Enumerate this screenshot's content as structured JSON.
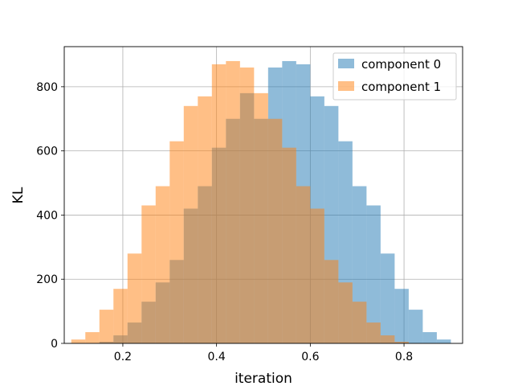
{
  "chart_data": {
    "type": "bar",
    "title": "",
    "xlabel": "iteration",
    "ylabel": "KL",
    "xlim": [
      0.075,
      0.925
    ],
    "ylim": [
      0,
      925
    ],
    "xticks": [
      0.2,
      0.4,
      0.6,
      0.8
    ],
    "xtick_labels": [
      "0.2",
      "0.4",
      "0.6",
      "0.8"
    ],
    "yticks": [
      0,
      200,
      400,
      600,
      800
    ],
    "ytick_labels": [
      "0",
      "200",
      "400",
      "600",
      "800"
    ],
    "grid": true,
    "legend_position": "upper right",
    "overlap_color": "#c69c72",
    "series": [
      {
        "name": "component 0",
        "color": "#1f77b4",
        "alpha": 0.5,
        "bin_edges": [
          0.15,
          0.18,
          0.21,
          0.24,
          0.27,
          0.3,
          0.33,
          0.36,
          0.39,
          0.42,
          0.45,
          0.48,
          0.51,
          0.54,
          0.57,
          0.6,
          0.63,
          0.66,
          0.69,
          0.72,
          0.75,
          0.78,
          0.81,
          0.84,
          0.87,
          0.9
        ],
        "counts": [
          5,
          25,
          65,
          130,
          190,
          260,
          420,
          490,
          610,
          700,
          780,
          700,
          860,
          880,
          870,
          770,
          740,
          630,
          490,
          430,
          280,
          170,
          105,
          35,
          12
        ]
      },
      {
        "name": "component 1",
        "color": "#ff7f0e",
        "alpha": 0.5,
        "bin_edges": [
          0.09,
          0.12,
          0.15,
          0.18,
          0.21,
          0.24,
          0.27,
          0.3,
          0.33,
          0.36,
          0.39,
          0.42,
          0.45,
          0.48,
          0.51,
          0.54,
          0.57,
          0.6,
          0.63,
          0.66,
          0.69,
          0.72,
          0.75,
          0.78,
          0.81,
          0.84
        ],
        "counts": [
          12,
          35,
          105,
          170,
          280,
          430,
          490,
          630,
          740,
          770,
          870,
          880,
          860,
          780,
          700,
          610,
          490,
          420,
          260,
          190,
          130,
          65,
          25,
          5,
          0
        ]
      }
    ]
  }
}
